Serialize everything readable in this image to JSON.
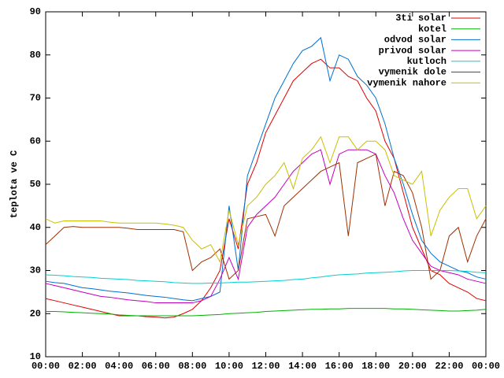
{
  "chart_data": {
    "type": "line",
    "y_label": "teplota ve C",
    "x": [
      0,
      0.5,
      1,
      1.5,
      2,
      2.5,
      3,
      3.5,
      4,
      4.5,
      5,
      5.5,
      6,
      6.5,
      7,
      7.5,
      8,
      8.5,
      9,
      9.5,
      10,
      10.5,
      11,
      11.5,
      12,
      12.5,
      13,
      13.5,
      14,
      14.5,
      15,
      15.5,
      16,
      16.5,
      17,
      17.5,
      18,
      18.5,
      19,
      19.5,
      20,
      20.5,
      21,
      21.5,
      22,
      22.5,
      23,
      23.5,
      24
    ],
    "xlim": [
      0,
      24
    ],
    "xticks": [
      {
        "value": 0,
        "label": "00:00"
      },
      {
        "value": 2,
        "label": "02:00"
      },
      {
        "value": 4,
        "label": "04:00"
      },
      {
        "value": 6,
        "label": "06:00"
      },
      {
        "value": 8,
        "label": "08:00"
      },
      {
        "value": 10,
        "label": "10:00"
      },
      {
        "value": 12,
        "label": "12:00"
      },
      {
        "value": 14,
        "label": "14:00"
      },
      {
        "value": 16,
        "label": "16:00"
      },
      {
        "value": 18,
        "label": "18:00"
      },
      {
        "value": 20,
        "label": "20:00"
      },
      {
        "value": 22,
        "label": "22:00"
      },
      {
        "value": 24,
        "label": "00:00"
      }
    ],
    "ylim": [
      10,
      90
    ],
    "yticks": [
      10,
      20,
      30,
      40,
      50,
      60,
      70,
      80,
      90
    ],
    "legend": "top-right",
    "series": [
      {
        "name": "3ti solar",
        "color": "#e00000",
        "values": [
          23.5,
          23,
          22.5,
          22,
          21.5,
          21,
          20.5,
          20,
          19.5,
          19.5,
          19.5,
          19.3,
          19.2,
          19,
          19.2,
          20,
          21,
          23,
          26,
          30,
          42,
          35,
          50,
          55,
          62,
          66,
          70,
          74,
          76,
          78,
          79,
          77,
          77,
          75,
          74,
          70,
          67,
          60,
          56,
          48,
          40,
          35,
          30,
          29,
          27,
          26,
          25,
          23.5,
          23
        ]
      },
      {
        "name": "kotel",
        "color": "#00b000",
        "values": [
          20.5,
          20.5,
          20.4,
          20.3,
          20.2,
          20.1,
          20,
          19.9,
          19.7,
          19.6,
          19.5,
          19.5,
          19.5,
          19.5,
          19.5,
          19.5,
          19.5,
          19.6,
          19.7,
          19.8,
          20,
          20.1,
          20.2,
          20.3,
          20.5,
          20.6,
          20.7,
          20.8,
          20.9,
          21,
          21,
          21.1,
          21.1,
          21.2,
          21.2,
          21.2,
          21.2,
          21.2,
          21.1,
          21.1,
          21,
          20.9,
          20.8,
          20.7,
          20.6,
          20.6,
          20.7,
          20.8,
          21
        ]
      },
      {
        "name": "odvod solar",
        "color": "#0070d0",
        "values": [
          27.5,
          27.2,
          27,
          26.5,
          26,
          25.8,
          25.5,
          25.2,
          25,
          24.8,
          24.5,
          24.2,
          24,
          23.8,
          23.5,
          23.2,
          23,
          23.5,
          24,
          25,
          45,
          30,
          52,
          58,
          64,
          70,
          74,
          78,
          81,
          82,
          84,
          74,
          80,
          79,
          75,
          73,
          70,
          64,
          56,
          50,
          43,
          37,
          34,
          32,
          31,
          30,
          29.5,
          28.5,
          28
        ]
      },
      {
        "name": "privod solar",
        "color": "#c000c0",
        "values": [
          27,
          26.5,
          26,
          25.5,
          25,
          24.5,
          24,
          23.8,
          23.5,
          23.2,
          23,
          22.8,
          22.5,
          22.5,
          22.5,
          22.5,
          22.5,
          23,
          24,
          28,
          33,
          28,
          40,
          43,
          45,
          47,
          50,
          53,
          55,
          57,
          58,
          50,
          57,
          58,
          58,
          58,
          57,
          52,
          48,
          42,
          37,
          34,
          31,
          30,
          29.5,
          29,
          28,
          27.5,
          27
        ]
      },
      {
        "name": "kutloch",
        "color": "#00d0d0",
        "values": [
          29,
          28.9,
          28.8,
          28.6,
          28.5,
          28.4,
          28.2,
          28.1,
          28,
          27.9,
          27.7,
          27.6,
          27.5,
          27.4,
          27.2,
          27.1,
          27,
          27,
          27.1,
          27.1,
          27.2,
          27.3,
          27.3,
          27.4,
          27.5,
          27.6,
          27.7,
          27.9,
          28,
          28.3,
          28.5,
          28.8,
          29,
          29.1,
          29.2,
          29.4,
          29.5,
          29.6,
          29.7,
          29.9,
          30,
          30,
          30,
          30,
          30,
          29.9,
          29.8,
          29.6,
          29.5
        ]
      },
      {
        "name": "vymenik dole",
        "color": "#a03000",
        "values": [
          36,
          38,
          40,
          40.2,
          40,
          40,
          40,
          40,
          40,
          39.8,
          39.5,
          39.5,
          39.5,
          39.5,
          39.5,
          39,
          30,
          32,
          33,
          35,
          28,
          30,
          42,
          42.5,
          43,
          38,
          45,
          47,
          49,
          51,
          53,
          54,
          55,
          38,
          55,
          56,
          57,
          45,
          53,
          52,
          48,
          40,
          28,
          30,
          38,
          40,
          32,
          38,
          42
        ]
      },
      {
        "name": "vymenik nahore",
        "color": "#c8c000",
        "values": [
          42,
          41,
          41.5,
          41.5,
          41.5,
          41.5,
          41.5,
          41.2,
          41,
          41,
          41,
          41,
          41,
          40.8,
          40.5,
          40,
          37,
          35,
          36,
          32,
          44,
          36,
          45,
          47,
          50,
          52,
          55,
          49,
          56,
          58,
          61,
          55,
          61,
          61,
          58,
          60,
          60,
          58,
          52,
          51,
          50,
          53,
          38,
          44,
          47,
          49,
          49,
          42,
          45
        ]
      }
    ]
  }
}
